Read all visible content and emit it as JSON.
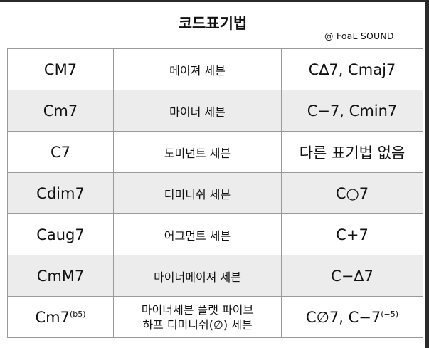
{
  "title": "코드표기법",
  "credit": "@ FoaL SOUND",
  "rows": [
    {
      "symbol": "CM7",
      "name": "메이져 세븐",
      "notation": "C∆7, Cmaj7"
    },
    {
      "symbol": "Cm7",
      "name": "마이너 세븐",
      "notation": "C−7, Cmin7"
    },
    {
      "symbol": "C7",
      "name": "도미넌트 세븐",
      "notation": "다른 표기법 없음"
    },
    {
      "symbol": "Cdim7",
      "name": "디미니쉬 세븐",
      "notation": "C○7"
    },
    {
      "symbol": "Caug7",
      "name": "어그먼트 세븐",
      "notation": "C+7"
    },
    {
      "symbol": "CmM7",
      "name": "마이너메이져 세븐",
      "notation": "C−∆7"
    },
    {
      "symbol": "Cm7",
      "symbol_sup": "(b5)",
      "name_line1": "마이너세븐 플랫 파이브",
      "name_line2": "하프 디미니쉬(∅) 세븐",
      "notation": "C∅7, C−7",
      "notation_sup": "(−5)"
    }
  ]
}
